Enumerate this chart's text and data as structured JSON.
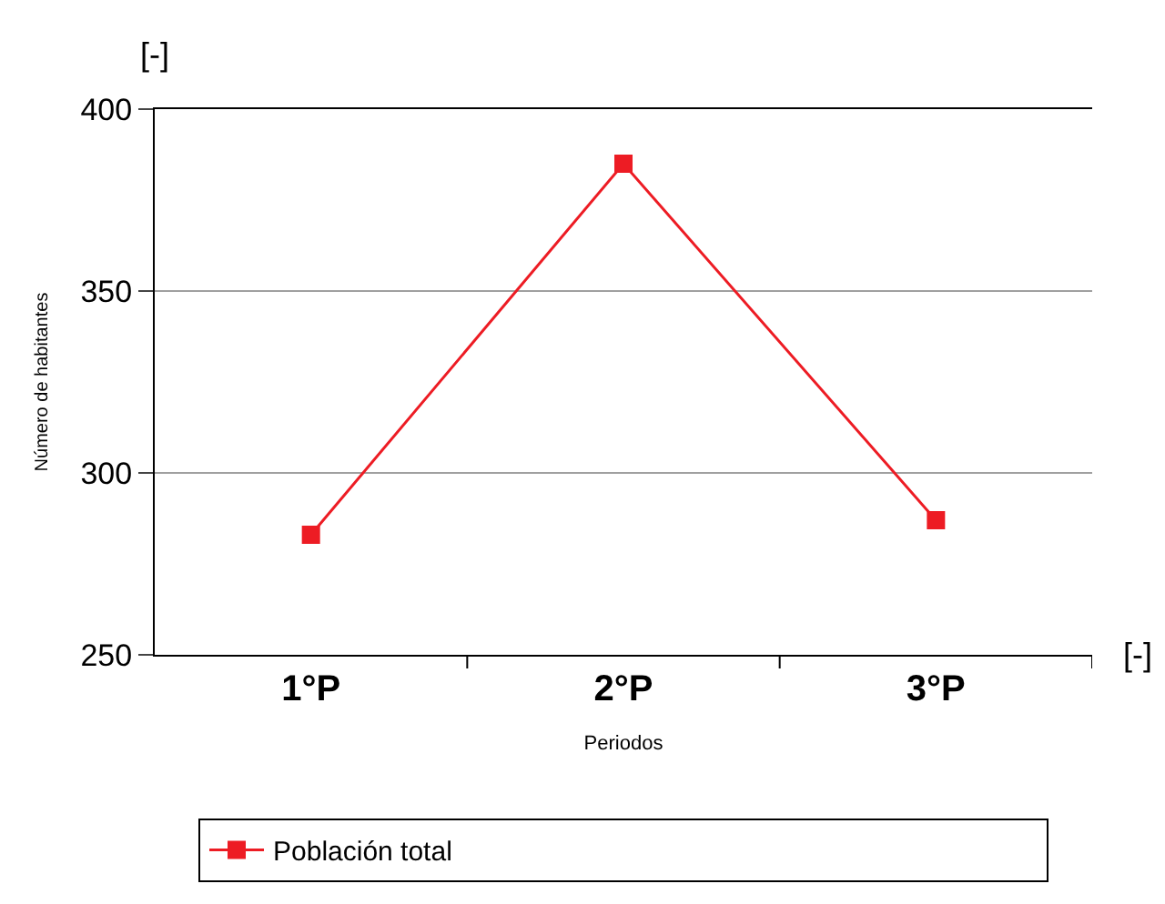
{
  "chart_data": {
    "type": "line",
    "xlabel": "Periodos",
    "ylabel": "Número de habitantes",
    "categories": [
      "1°P",
      "2°P",
      "3°P"
    ],
    "series": [
      {
        "name": "Población total",
        "color": "#ed1c24",
        "values": [
          283,
          385,
          287
        ]
      }
    ],
    "ylim": [
      250,
      400
    ],
    "yticks": [
      250,
      300,
      350,
      400
    ],
    "grid": "y",
    "legend": "bottom",
    "marker": "square",
    "line_style": "solid",
    "annotations": [
      "[-]",
      "[-]"
    ]
  }
}
